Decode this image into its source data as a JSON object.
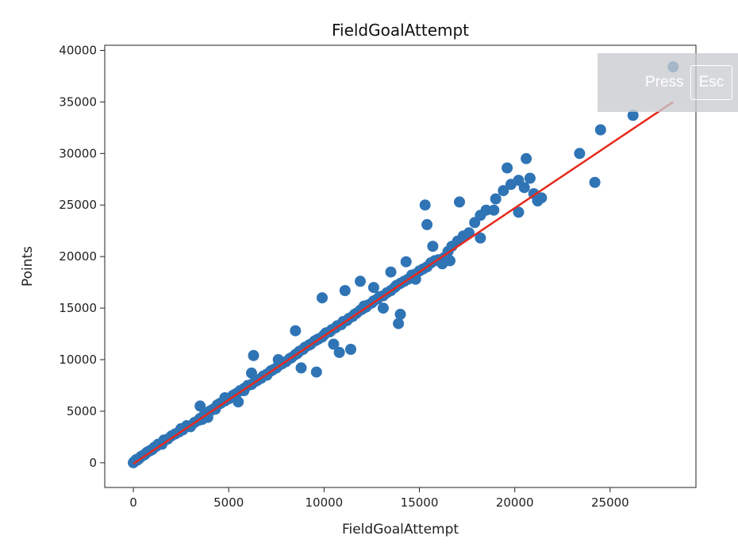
{
  "overlay": {
    "press_label": "Press",
    "key_label": "Esc"
  },
  "colors": {
    "points": "#2f74b5",
    "fit_line": "#e8291c",
    "overlay_bg": "#c8cbce"
  },
  "chart_data": {
    "type": "scatter",
    "title": "FieldGoalAttempt",
    "xlabel": "FieldGoalAttempt",
    "ylabel": "Points",
    "xlim": [
      -1500,
      29500
    ],
    "ylim": [
      -2400,
      40500
    ],
    "xticks": [
      0,
      5000,
      10000,
      15000,
      20000,
      25000
    ],
    "yticks": [
      0,
      5000,
      10000,
      15000,
      20000,
      25000,
      30000,
      35000,
      40000
    ],
    "grid": false,
    "series": [
      {
        "kind": "points",
        "x": [
          0,
          50,
          100,
          150,
          200,
          300,
          400,
          500,
          600,
          700,
          800,
          900,
          1000,
          1100,
          1200,
          1300,
          1500,
          1600,
          1800,
          2000,
          2200,
          2400,
          2600,
          2800,
          3000,
          3200,
          3400,
          3500,
          3600,
          3700,
          3800,
          4000,
          4100,
          4200,
          4400,
          4500,
          4600,
          4800,
          5000,
          5200,
          5300,
          5400,
          5600,
          5800,
          6000,
          6200,
          6400,
          6500,
          6700,
          6800,
          7000,
          7200,
          7300,
          7500,
          7600,
          7800,
          8000,
          8200,
          8300,
          8500,
          8600,
          8700,
          8900,
          9000,
          9200,
          9300,
          9500,
          9600,
          9700,
          9900,
          10000,
          10100,
          10300,
          10400,
          10600,
          10700,
          10900,
          11000,
          11200,
          11300,
          11500,
          11600,
          11700,
          11900,
          12000,
          12200,
          12300,
          12500,
          12600,
          12800,
          12900,
          13100,
          13300,
          13500,
          13700,
          13800,
          14000,
          14200,
          14400,
          14600,
          14800,
          15000,
          15200,
          15400,
          15600,
          15800,
          16000,
          16300,
          16500,
          16700,
          17000,
          17300,
          17600,
          17900,
          18200,
          18500,
          19000,
          19400,
          19800,
          20200,
          20500,
          20800,
          21000,
          21200,
          23400,
          24200,
          24500,
          26200,
          28300,
          3500,
          4300,
          6200,
          5800,
          7600,
          8500,
          9900,
          11100,
          11900,
          12600,
          13500,
          14300,
          15400,
          15300,
          15700,
          16200,
          17100,
          18200,
          18900,
          19600,
          20200,
          20600,
          21400,
          13100,
          14000,
          14800,
          6300,
          7000,
          8800,
          10500,
          11400,
          9600,
          10800,
          13900,
          12100,
          16600,
          2500,
          1500,
          3900,
          4800,
          5500
        ],
        "y": [
          0,
          100,
          200,
          300,
          250,
          400,
          600,
          700,
          800,
          1000,
          1100,
          1200,
          1300,
          1500,
          1600,
          1800,
          1900,
          2200,
          2300,
          2600,
          2800,
          3000,
          3200,
          3600,
          3500,
          3900,
          4100,
          4300,
          4200,
          4600,
          4700,
          5000,
          5100,
          5200,
          5600,
          5700,
          5800,
          6000,
          6200,
          6500,
          6600,
          6700,
          7000,
          7200,
          7500,
          7600,
          7900,
          8000,
          8200,
          8400,
          8600,
          8900,
          9000,
          9200,
          9400,
          9600,
          9800,
          10100,
          10200,
          10500,
          10600,
          10800,
          11000,
          11200,
          11400,
          11500,
          11800,
          11900,
          12000,
          12200,
          12400,
          12600,
          12700,
          12900,
          13100,
          13300,
          13400,
          13700,
          13800,
          14000,
          14200,
          14400,
          14500,
          14800,
          14900,
          15100,
          15300,
          15500,
          15700,
          15900,
          16100,
          16200,
          16500,
          16700,
          17000,
          17200,
          17400,
          17600,
          17800,
          18200,
          18300,
          18600,
          18800,
          19000,
          19400,
          19600,
          19700,
          19900,
          20500,
          21000,
          21500,
          22000,
          22300,
          23300,
          24000,
          24500,
          25600,
          26400,
          27000,
          24300,
          26700,
          27600,
          26100,
          25400,
          30000,
          27200,
          32300,
          33700,
          38400,
          5500,
          5200,
          8700,
          7000,
          10000,
          12800,
          16000,
          16700,
          17600,
          17000,
          18500,
          19500,
          23100,
          25000,
          21000,
          19300,
          25300,
          21800,
          24500,
          28600,
          27400,
          29500,
          25700,
          15000,
          14400,
          17800,
          10400,
          8500,
          9200,
          11500,
          11000,
          8800,
          10700,
          13500,
          15200,
          19600,
          3300,
          1800,
          4400,
          6300,
          5900
        ]
      },
      {
        "kind": "fit-line",
        "x": [
          0,
          28300
        ],
        "y": [
          -100,
          35000
        ]
      }
    ]
  }
}
